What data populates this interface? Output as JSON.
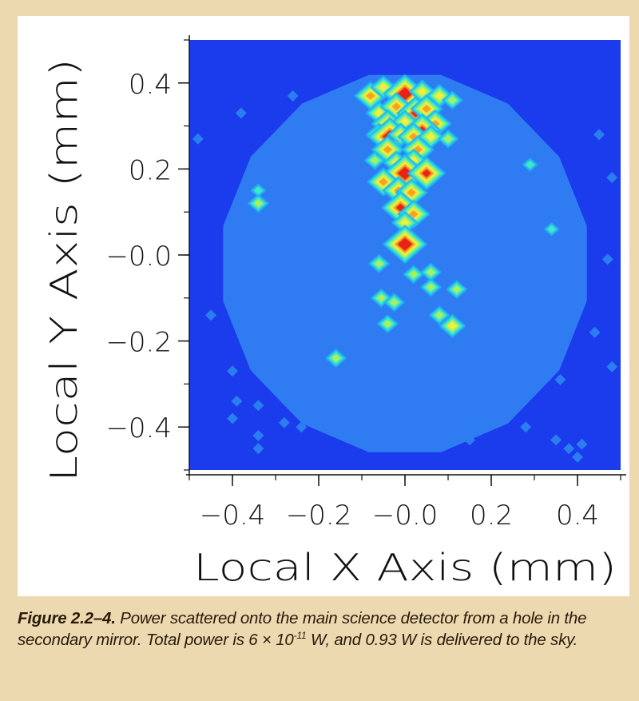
{
  "chart_data": {
    "type": "heatmap",
    "title": "",
    "xlabel": "Local X Axis (mm)",
    "ylabel": "Local Y Axis (mm)",
    "xlim": [
      -0.5,
      0.5
    ],
    "ylim": [
      -0.5,
      0.5
    ],
    "x_ticks": [
      {
        "value": -0.4,
        "label": "−0.4"
      },
      {
        "value": -0.2,
        "label": "−0.2"
      },
      {
        "value": 0.0,
        "label": "−0.0"
      },
      {
        "value": 0.2,
        "label": "0.2"
      },
      {
        "value": 0.4,
        "label": "0.4"
      }
    ],
    "y_ticks": [
      {
        "value": 0.4,
        "label": "0.4"
      },
      {
        "value": 0.2,
        "label": "0.2"
      },
      {
        "value": 0.0,
        "label": "−0.0"
      },
      {
        "value": -0.2,
        "label": "−0.2"
      },
      {
        "value": -0.4,
        "label": "−0.4"
      }
    ],
    "background_color": "#1a3cec",
    "disk_color": "#2f7cf2",
    "disk_radius_mm": 0.43,
    "colormap": [
      "#2a7ef0",
      "#22b8f0",
      "#3fe8c8",
      "#a8f060",
      "#f0f040",
      "#f8a020",
      "#e82018"
    ],
    "hotspots": [
      {
        "x": -0.08,
        "y": 0.37,
        "level": 4
      },
      {
        "x": -0.05,
        "y": 0.39,
        "level": 3
      },
      {
        "x": 0.0,
        "y": 0.375,
        "level": 6
      },
      {
        "x": 0.04,
        "y": 0.38,
        "level": 3
      },
      {
        "x": 0.08,
        "y": 0.37,
        "level": 3
      },
      {
        "x": 0.11,
        "y": 0.36,
        "level": 2
      },
      {
        "x": -0.06,
        "y": 0.33,
        "level": 3
      },
      {
        "x": -0.02,
        "y": 0.345,
        "level": 4
      },
      {
        "x": 0.025,
        "y": 0.33,
        "level": 5
      },
      {
        "x": 0.05,
        "y": 0.34,
        "level": 4
      },
      {
        "x": 0.07,
        "y": 0.305,
        "level": 4
      },
      {
        "x": -0.04,
        "y": 0.305,
        "level": 4
      },
      {
        "x": 0.0,
        "y": 0.31,
        "level": 3
      },
      {
        "x": 0.04,
        "y": 0.29,
        "level": 5
      },
      {
        "x": -0.06,
        "y": 0.28,
        "level": 3
      },
      {
        "x": -0.035,
        "y": 0.275,
        "level": 6
      },
      {
        "x": -0.01,
        "y": 0.28,
        "level": 3
      },
      {
        "x": 0.02,
        "y": 0.275,
        "level": 4
      },
      {
        "x": 0.06,
        "y": 0.275,
        "level": 3
      },
      {
        "x": 0.1,
        "y": 0.27,
        "level": 2
      },
      {
        "x": -0.04,
        "y": 0.245,
        "level": 4
      },
      {
        "x": 0.03,
        "y": 0.245,
        "level": 4
      },
      {
        "x": -0.07,
        "y": 0.22,
        "level": 2
      },
      {
        "x": -0.02,
        "y": 0.215,
        "level": 3
      },
      {
        "x": 0.02,
        "y": 0.22,
        "level": 3
      },
      {
        "x": 0.0,
        "y": 0.19,
        "level": 6
      },
      {
        "x": 0.05,
        "y": 0.19,
        "level": 5
      },
      {
        "x": -0.05,
        "y": 0.17,
        "level": 4
      },
      {
        "x": -0.015,
        "y": 0.15,
        "level": 4
      },
      {
        "x": 0.015,
        "y": 0.145,
        "level": 4
      },
      {
        "x": -0.01,
        "y": 0.11,
        "level": 5
      },
      {
        "x": 0.02,
        "y": 0.095,
        "level": 4
      },
      {
        "x": 0.0,
        "y": 0.075,
        "level": 3
      },
      {
        "x": 0.0,
        "y": 0.025,
        "level": 6
      },
      {
        "x": -0.06,
        "y": -0.02,
        "level": 2
      },
      {
        "x": 0.02,
        "y": -0.045,
        "level": 2
      },
      {
        "x": 0.06,
        "y": -0.04,
        "level": 2
      },
      {
        "x": -0.055,
        "y": -0.1,
        "level": 2
      },
      {
        "x": -0.025,
        "y": -0.11,
        "level": 2
      },
      {
        "x": 0.06,
        "y": -0.075,
        "level": 2
      },
      {
        "x": 0.12,
        "y": -0.08,
        "level": 2
      },
      {
        "x": 0.08,
        "y": -0.14,
        "level": 2
      },
      {
        "x": 0.11,
        "y": -0.165,
        "level": 3
      },
      {
        "x": -0.04,
        "y": -0.16,
        "level": 2
      },
      {
        "x": -0.16,
        "y": -0.24,
        "level": 2
      },
      {
        "x": -0.34,
        "y": 0.12,
        "level": 2
      },
      {
        "x": -0.34,
        "y": 0.15,
        "level": 1
      },
      {
        "x": 0.34,
        "y": 0.06,
        "level": 1
      },
      {
        "x": 0.29,
        "y": 0.21,
        "level": 1
      }
    ],
    "stray_dots": [
      {
        "x": -0.48,
        "y": 0.27
      },
      {
        "x": -0.38,
        "y": 0.33
      },
      {
        "x": -0.26,
        "y": 0.37
      },
      {
        "x": 0.45,
        "y": 0.28
      },
      {
        "x": 0.48,
        "y": 0.18
      },
      {
        "x": 0.47,
        "y": -0.01
      },
      {
        "x": -0.45,
        "y": -0.14
      },
      {
        "x": 0.44,
        "y": -0.18
      },
      {
        "x": 0.48,
        "y": -0.26
      },
      {
        "x": -0.4,
        "y": -0.27
      },
      {
        "x": -0.39,
        "y": -0.34
      },
      {
        "x": -0.4,
        "y": -0.38
      },
      {
        "x": -0.34,
        "y": -0.35
      },
      {
        "x": -0.34,
        "y": -0.42
      },
      {
        "x": -0.28,
        "y": -0.39
      },
      {
        "x": -0.24,
        "y": -0.4
      },
      {
        "x": -0.34,
        "y": -0.45
      },
      {
        "x": 0.17,
        "y": -0.41
      },
      {
        "x": 0.28,
        "y": -0.4
      },
      {
        "x": 0.35,
        "y": -0.43
      },
      {
        "x": 0.38,
        "y": -0.45
      },
      {
        "x": 0.41,
        "y": -0.44
      },
      {
        "x": 0.4,
        "y": -0.47
      },
      {
        "x": 0.36,
        "y": -0.29
      },
      {
        "x": 0.15,
        "y": -0.43
      }
    ]
  },
  "caption": {
    "label": "Figure 2.2–4.",
    "text_part1": " Power scattered onto the main science detector from a hole in the secondary mirror. Total power is 6 × 10",
    "exponent": "-11",
    "text_part2": " W, and 0.93 W is delivered to the sky."
  }
}
